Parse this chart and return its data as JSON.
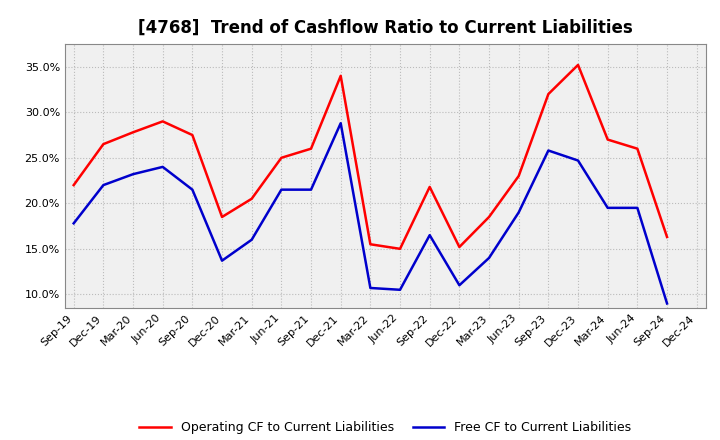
{
  "title": "[4768]  Trend of Cashflow Ratio to Current Liabilities",
  "x_labels": [
    "Sep-19",
    "Dec-19",
    "Mar-20",
    "Jun-20",
    "Sep-20",
    "Dec-20",
    "Mar-21",
    "Jun-21",
    "Sep-21",
    "Dec-21",
    "Mar-22",
    "Jun-22",
    "Sep-22",
    "Dec-22",
    "Mar-23",
    "Jun-23",
    "Sep-23",
    "Dec-23",
    "Mar-24",
    "Jun-24",
    "Sep-24",
    "Dec-24"
  ],
  "operating_cf": [
    0.22,
    0.265,
    0.278,
    0.29,
    0.275,
    0.185,
    0.205,
    0.25,
    0.26,
    0.34,
    0.155,
    0.15,
    0.218,
    0.152,
    0.185,
    0.23,
    0.32,
    0.352,
    0.27,
    0.26,
    0.163,
    null
  ],
  "free_cf": [
    0.178,
    0.22,
    0.232,
    0.24,
    0.215,
    0.137,
    0.16,
    0.215,
    0.215,
    0.288,
    0.107,
    0.105,
    0.165,
    0.11,
    0.14,
    0.19,
    0.258,
    0.247,
    0.195,
    0.195,
    0.09,
    null
  ],
  "operating_color": "#FF0000",
  "free_color": "#0000CC",
  "ylim_min": 0.085,
  "ylim_max": 0.375,
  "yticks": [
    0.1,
    0.15,
    0.2,
    0.25,
    0.3,
    0.35
  ],
  "background_color": "#FFFFFF",
  "plot_bg_color": "#F0F0F0",
  "grid_color": "#BBBBBB",
  "border_color": "#888888",
  "legend_op": "Operating CF to Current Liabilities",
  "legend_free": "Free CF to Current Liabilities",
  "title_fontsize": 12,
  "tick_fontsize": 8
}
